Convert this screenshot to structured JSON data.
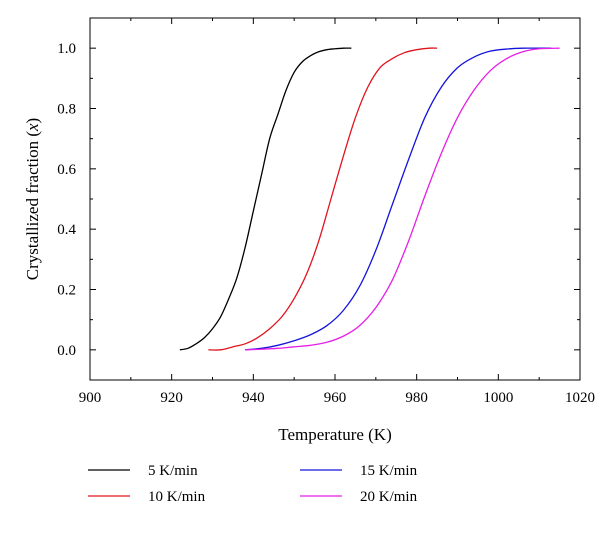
{
  "chart_data": {
    "type": "line",
    "title": "",
    "xlabel": "Temperature (K)",
    "ylabel_parts": [
      "Crystallized fraction (",
      "x",
      ")"
    ],
    "xlim": [
      900,
      1020
    ],
    "ylim": [
      -0.1,
      1.1
    ],
    "xticks": [
      900,
      920,
      940,
      960,
      980,
      1000,
      1020
    ],
    "yticks": [
      0.0,
      0.2,
      0.4,
      0.6,
      0.8,
      1.0
    ],
    "xtick_labels": [
      "900",
      "920",
      "940",
      "960",
      "980",
      "1000",
      "1020"
    ],
    "ytick_labels": [
      "0.0",
      "0.2",
      "0.4",
      "0.6",
      "0.8",
      "1.0"
    ],
    "grid": false,
    "legend_position": "bottom",
    "series": [
      {
        "name": "5 K/min",
        "color": "#000000",
        "x": [
          922,
          924,
          926,
          928,
          930,
          932,
          934,
          936,
          938,
          940,
          942,
          944,
          946,
          948,
          950,
          952,
          954,
          956,
          958,
          960,
          962,
          964
        ],
        "y": [
          0.0,
          0.005,
          0.02,
          0.04,
          0.07,
          0.11,
          0.17,
          0.24,
          0.34,
          0.46,
          0.58,
          0.7,
          0.78,
          0.86,
          0.92,
          0.955,
          0.975,
          0.988,
          0.995,
          0.998,
          1.0,
          1.0
        ]
      },
      {
        "name": "10 K/min",
        "color": "#e0141e",
        "x": [
          929,
          932,
          935,
          938,
          941,
          944,
          947,
          950,
          953,
          956,
          959,
          962,
          965,
          968,
          971,
          974,
          977,
          980,
          983,
          985
        ],
        "y": [
          0.0,
          0.0,
          0.01,
          0.02,
          0.04,
          0.07,
          0.11,
          0.17,
          0.25,
          0.36,
          0.5,
          0.64,
          0.77,
          0.87,
          0.935,
          0.965,
          0.985,
          0.995,
          1.0,
          1.0
        ]
      },
      {
        "name": "15 K/min",
        "color": "#1414dc",
        "x": [
          938,
          942,
          946,
          950,
          954,
          958,
          962,
          966,
          970,
          974,
          978,
          982,
          986,
          990,
          994,
          998,
          1002,
          1006,
          1010,
          1013
        ],
        "y": [
          0.0,
          0.005,
          0.015,
          0.03,
          0.05,
          0.08,
          0.13,
          0.21,
          0.33,
          0.48,
          0.63,
          0.77,
          0.87,
          0.935,
          0.97,
          0.99,
          0.997,
          1.0,
          1.0,
          1.0
        ]
      },
      {
        "name": "20 K/min",
        "color": "#e61ee6",
        "x": [
          938,
          942,
          946,
          950,
          954,
          958,
          962,
          966,
          970,
          974,
          978,
          982,
          986,
          990,
          994,
          998,
          1002,
          1006,
          1010,
          1015
        ],
        "y": [
          0.0,
          0.002,
          0.005,
          0.01,
          0.015,
          0.025,
          0.045,
          0.08,
          0.14,
          0.23,
          0.36,
          0.51,
          0.65,
          0.77,
          0.86,
          0.925,
          0.965,
          0.988,
          0.998,
          1.0
        ]
      }
    ]
  }
}
